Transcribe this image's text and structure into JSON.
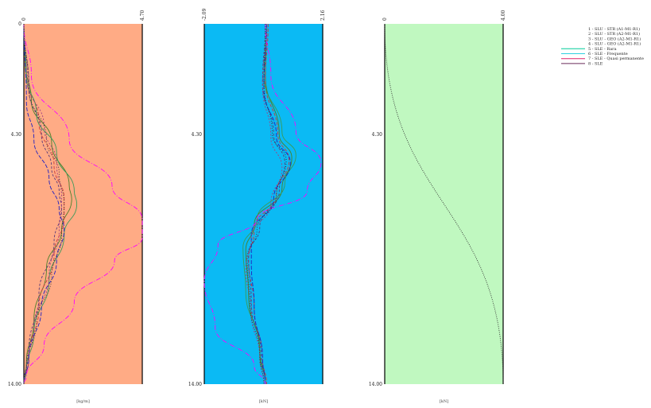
{
  "chart_data": [
    {
      "type": "line",
      "panel": "left",
      "bg": "#FFAB85",
      "x_tick_labels": [
        "0",
        "4.70"
      ],
      "y_tick_labels": [
        "0",
        "4.30",
        "14.00"
      ],
      "xlim": [
        0,
        4.7
      ],
      "ylim": [
        0,
        14
      ],
      "xlabel": "[kg/m]",
      "series": [
        {
          "color": "#4b7f2a",
          "dash": "",
          "x": [
            0,
            0.05,
            0.3,
            1.1,
            1.8,
            1.9,
            1.5,
            0.9,
            0.4,
            0.1,
            0
          ],
          "y": [
            0,
            1.5,
            3,
            4.6,
            6.3,
            6.8,
            8,
            9.5,
            11.5,
            13.2,
            14
          ]
        },
        {
          "color": "#c83c3c",
          "dash": "4,2",
          "x": [
            0,
            0.1,
            0.6,
            1.2,
            1.6,
            1.6,
            1.2,
            0.6,
            0.2,
            0
          ],
          "y": [
            0,
            2,
            3.8,
            5.5,
            6.8,
            7.5,
            9,
            11,
            13,
            14
          ]
        },
        {
          "color": "#3a9a5a",
          "dash": "",
          "x": [
            0,
            0.1,
            0.5,
            1.3,
            2,
            2.1,
            1.6,
            1,
            0.4,
            0.1,
            0
          ],
          "y": [
            0,
            2,
            3.5,
            5,
            6.5,
            7,
            8.2,
            10,
            12,
            13.5,
            14
          ]
        },
        {
          "color": "#5a3a7a",
          "dash": "3,2",
          "x": [
            0,
            0.2,
            0.7,
            1.1,
            1.4,
            1.5,
            1.2,
            0.6,
            0.2,
            0
          ],
          "y": [
            0,
            2.5,
            4.3,
            5.6,
            6.5,
            7.2,
            8.5,
            10.5,
            12.7,
            14
          ]
        },
        {
          "color": "#2020c0",
          "dash": "5,2",
          "x": [
            0,
            0.1,
            0.4,
            1,
            1.4,
            1.6,
            1.3,
            0.7,
            0.2,
            0
          ],
          "y": [
            0,
            3,
            4.5,
            6,
            7.2,
            8,
            9.2,
            11,
            13,
            14
          ]
        },
        {
          "color": "#ff00ff",
          "dash": "6,2,1,2",
          "x": [
            0,
            0.3,
            1.8,
            3.5,
            4.7,
            4.7,
            3.6,
            2,
            0.8,
            0.1,
            0
          ],
          "y": [
            0,
            2,
            4.5,
            6.3,
            7.6,
            8.3,
            9.2,
            10.8,
            12.5,
            13.7,
            14
          ]
        },
        {
          "color": "#a04080",
          "dash": "2,2",
          "x": [
            0,
            0.15,
            0.8,
            1.3,
            1.5,
            1.4,
            1,
            0.4,
            0.1,
            0
          ],
          "y": [
            0,
            2.2,
            4,
            5.4,
            6.8,
            8,
            9.8,
            11.8,
            13.4,
            14
          ]
        },
        {
          "color": "#333333",
          "dash": "1,2",
          "x": [
            0,
            0.2,
            0.9,
            1.4,
            1.6,
            1.5,
            1.1,
            0.5,
            0.1,
            0
          ],
          "y": [
            0,
            2.5,
            4.5,
            5.8,
            7,
            8.2,
            9.8,
            11.6,
            13.3,
            14
          ]
        }
      ]
    },
    {
      "type": "line",
      "panel": "middle",
      "bg": "#0BBAF4",
      "x_tick_labels": [
        "-2.09",
        "2.16"
      ],
      "y_tick_labels": [
        "4.30",
        "14.00"
      ],
      "xlim": [
        -2.09,
        2.16
      ],
      "ylim": [
        0,
        14
      ],
      "xlabel": "[kN]",
      "series": [
        {
          "color": "#4b7f2a",
          "dash": "",
          "x": [
            0.15,
            0.1,
            0.6,
            1.05,
            0.7,
            -0.3,
            -0.6,
            -0.5,
            -0.1,
            0.1
          ],
          "y": [
            0,
            2,
            4.3,
            5.2,
            6.4,
            7.8,
            8.8,
            10.5,
            12.8,
            14
          ]
        },
        {
          "color": "#c83c3c",
          "dash": "4,2",
          "x": [
            0.2,
            0.1,
            0.55,
            0.95,
            0.5,
            -0.3,
            -0.5,
            -0.3,
            0,
            0.15
          ],
          "y": [
            0,
            2.2,
            4.3,
            5.3,
            6.6,
            8,
            9.2,
            11,
            13,
            14
          ]
        },
        {
          "color": "#3a9a5a",
          "dash": "",
          "x": [
            0.15,
            0.05,
            0.7,
            1.2,
            0.8,
            -0.2,
            -0.7,
            -0.6,
            -0.1,
            0.1
          ],
          "y": [
            0,
            2,
            4.2,
            5.1,
            6.2,
            7.6,
            8.7,
            10.4,
            12.6,
            14
          ]
        },
        {
          "color": "#5a3a7a",
          "dash": "3,2",
          "x": [
            0.1,
            0,
            0.4,
            0.8,
            0.6,
            -0.1,
            -0.5,
            -0.4,
            -0.05,
            0.1
          ],
          "y": [
            0,
            2.3,
            4.3,
            5.4,
            6.5,
            7.9,
            9,
            10.8,
            12.9,
            14
          ]
        },
        {
          "color": "#2020c0",
          "dash": "5,2",
          "x": [
            0.15,
            0.05,
            0.5,
            1,
            0.4,
            -0.4,
            -0.4,
            -0.3,
            0,
            0.1
          ],
          "y": [
            0,
            2.5,
            4.4,
            5.4,
            6.8,
            8.2,
            9.3,
            11,
            13,
            14
          ]
        },
        {
          "color": "#ff00ff",
          "dash": "6,2,1,2",
          "x": [
            0.1,
            0.3,
            1.2,
            2.1,
            1.6,
            -0.2,
            -1.6,
            -2.09,
            -1.7,
            -0.3,
            0.1
          ],
          "y": [
            0,
            2,
            4.2,
            5.4,
            6.5,
            7.6,
            8.6,
            10,
            11.8,
            13.3,
            14
          ]
        },
        {
          "color": "#a04080",
          "dash": "2,2",
          "x": [
            0.15,
            0,
            0.3,
            0.7,
            0.3,
            -0.4,
            -0.6,
            -0.4,
            -0.1,
            0.05
          ],
          "y": [
            0,
            2.4,
            4.4,
            5.6,
            7,
            8.3,
            9.5,
            11.2,
            13,
            14
          ]
        },
        {
          "color": "#333333",
          "dash": "1,2",
          "x": [
            0.1,
            0.05,
            0.35,
            0.85,
            0.5,
            -0.2,
            -0.55,
            -0.45,
            -0.1,
            0.05
          ],
          "y": [
            0,
            2.3,
            4.3,
            5.3,
            6.7,
            8,
            9.1,
            10.9,
            12.9,
            14
          ]
        }
      ]
    },
    {
      "type": "line",
      "panel": "right",
      "bg": "#C0F8C0",
      "x_tick_labels": [
        "0",
        "4.00"
      ],
      "y_tick_labels": [
        "4.30",
        "14.00"
      ],
      "xlim": [
        0,
        4
      ],
      "ylim": [
        0,
        14
      ],
      "xlabel": "[kN]",
      "series": [
        {
          "color": "#333333",
          "dash": "1,1.5",
          "x": [
            0,
            4
          ],
          "y": [
            0,
            14
          ]
        }
      ]
    }
  ],
  "legend": {
    "placement": "top-right",
    "entries": [
      {
        "label": "1 - SLU - STR (A1-M1-R1)",
        "color": "#ffffff"
      },
      {
        "label": "2 - SLU - STR (A2-M1-R1)",
        "color": "#ffffff"
      },
      {
        "label": "3 - SLU - GEO (A2-M1-R1)",
        "color": "#ffffff"
      },
      {
        "label": "4 - SLU - GEO (A2-M1-R1)",
        "color": "#ffffff"
      },
      {
        "label": "5 - SLE - Rara",
        "color": "#00cc99"
      },
      {
        "label": "6 - SLE - Frequente",
        "color": "#2fd0e0"
      },
      {
        "label": "7 - SLE - Quasi permanente",
        "color": "#e0206a"
      },
      {
        "label": "8 - SLE",
        "color": "#6a2a5a"
      }
    ]
  }
}
